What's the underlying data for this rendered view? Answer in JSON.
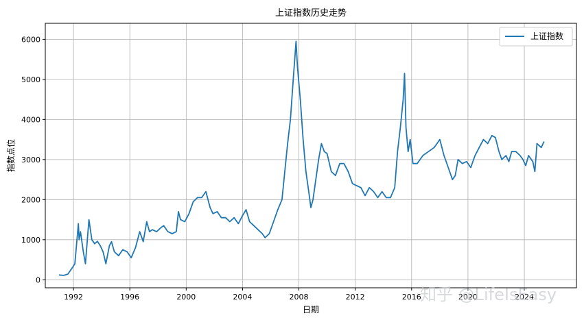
{
  "chart_data": {
    "type": "line",
    "title": "上证指数历史走势",
    "xlabel": "日期",
    "ylabel": "指数点位",
    "xlim": [
      1990.0,
      2027.7
    ],
    "ylim": [
      -200,
      6400
    ],
    "grid": true,
    "legend_position": "top-right",
    "x_ticks": [
      1992,
      1996,
      2000,
      2004,
      2008,
      2012,
      2016,
      2020,
      2024
    ],
    "y_ticks": [
      0,
      1000,
      2000,
      3000,
      4000,
      5000,
      6000
    ],
    "series": [
      {
        "name": "上证指数",
        "color": "#1f77b4",
        "x": [
          1990.97,
          1991.3,
          1991.6,
          1991.9,
          1992.1,
          1992.35,
          1992.4,
          1992.5,
          1992.7,
          1992.85,
          1993.1,
          1993.3,
          1993.5,
          1993.7,
          1993.9,
          1994.1,
          1994.3,
          1994.55,
          1994.7,
          1994.9,
          1995.2,
          1995.5,
          1995.8,
          1996.1,
          1996.4,
          1996.7,
          1996.95,
          1997.2,
          1997.4,
          1997.6,
          1997.9,
          1998.2,
          1998.4,
          1998.7,
          1999.0,
          1999.3,
          1999.45,
          1999.6,
          1999.9,
          2000.2,
          2000.5,
          2000.8,
          2001.1,
          2001.4,
          2001.7,
          2001.9,
          2002.2,
          2002.5,
          2002.8,
          2003.1,
          2003.4,
          2003.7,
          2004.0,
          2004.25,
          2004.5,
          2004.8,
          2005.1,
          2005.4,
          2005.6,
          2005.9,
          2006.2,
          2006.5,
          2006.8,
          2007.0,
          2007.2,
          2007.4,
          2007.6,
          2007.8,
          2007.9,
          2008.1,
          2008.3,
          2008.5,
          2008.7,
          2008.85,
          2009.0,
          2009.2,
          2009.4,
          2009.6,
          2009.8,
          2010.0,
          2010.3,
          2010.6,
          2010.9,
          2011.2,
          2011.5,
          2011.8,
          2012.1,
          2012.4,
          2012.7,
          2013.0,
          2013.3,
          2013.6,
          2013.9,
          2014.2,
          2014.5,
          2014.8,
          2015.0,
          2015.2,
          2015.4,
          2015.5,
          2015.6,
          2015.75,
          2015.9,
          2016.1,
          2016.4,
          2016.8,
          2017.2,
          2017.6,
          2018.0,
          2018.3,
          2018.6,
          2018.9,
          2019.1,
          2019.3,
          2019.6,
          2019.9,
          2020.2,
          2020.5,
          2020.8,
          2021.1,
          2021.4,
          2021.7,
          2021.95,
          2022.2,
          2022.4,
          2022.7,
          2022.9,
          2023.1,
          2023.4,
          2023.7,
          2023.9,
          2024.1,
          2024.3,
          2024.6,
          2024.75,
          2024.9,
          2025.2,
          2025.4
        ],
        "y": [
          120,
          110,
          140,
          290,
          400,
          1400,
          1000,
          1200,
          700,
          400,
          1500,
          1000,
          900,
          960,
          850,
          700,
          400,
          850,
          950,
          700,
          600,
          750,
          700,
          550,
          800,
          1200,
          950,
          1450,
          1200,
          1250,
          1200,
          1300,
          1350,
          1200,
          1150,
          1200,
          1700,
          1500,
          1450,
          1650,
          1950,
          2050,
          2050,
          2200,
          1800,
          1650,
          1700,
          1550,
          1550,
          1450,
          1550,
          1400,
          1600,
          1750,
          1450,
          1350,
          1250,
          1150,
          1050,
          1150,
          1450,
          1750,
          2000,
          2700,
          3400,
          4000,
          5000,
          5950,
          5300,
          4500,
          3500,
          2700,
          2200,
          1800,
          2000,
          2500,
          3000,
          3400,
          3200,
          3150,
          2700,
          2600,
          2900,
          2900,
          2700,
          2400,
          2350,
          2300,
          2100,
          2300,
          2200,
          2050,
          2200,
          2050,
          2050,
          2300,
          3200,
          3800,
          4500,
          5150,
          3800,
          3200,
          3500,
          2900,
          2900,
          3100,
          3200,
          3300,
          3500,
          3100,
          2800,
          2500,
          2600,
          3000,
          2900,
          2950,
          2800,
          3100,
          3300,
          3500,
          3400,
          3600,
          3550,
          3200,
          3000,
          3100,
          2950,
          3200,
          3200,
          3100,
          3000,
          2850,
          3100,
          2950,
          2700,
          3400,
          3300,
          3450
        ]
      }
    ]
  },
  "watermark": {
    "text": "知乎 @LifeIsEasy"
  }
}
